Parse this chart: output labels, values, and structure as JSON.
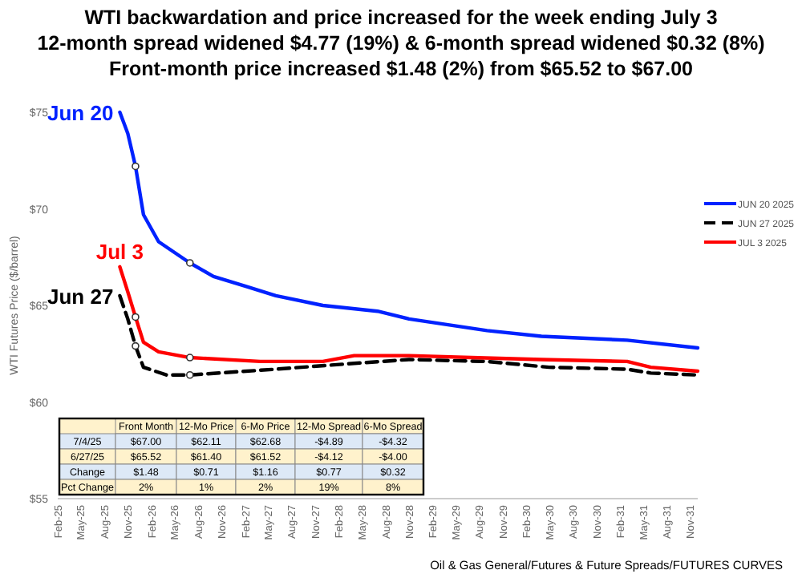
{
  "chart_data": {
    "type": "line",
    "title": "WTI backwardation and price increased for the week ending July 3",
    "subtitle": "12-month spread widened $4.77 (19%) & 6-month spread widened $0.32 (8%)\nFront-month price increased $1.48 (2%) from $65.52 to $67.00",
    "ylabel": "WTI Futures  Price ($/barrel)",
    "xlim": [
      "2025-02",
      "2031-12"
    ],
    "ylim": [
      55,
      75
    ],
    "yticks": [
      {
        "value": 55,
        "label": "$55"
      },
      {
        "value": 60,
        "label": "$60"
      },
      {
        "value": 65,
        "label": "$65"
      },
      {
        "value": 70,
        "label": "$70"
      },
      {
        "value": 75,
        "label": "$75"
      }
    ],
    "xticks": [
      {
        "value": "2025-02",
        "label": "Feb-25"
      },
      {
        "value": "2025-05",
        "label": "May-25"
      },
      {
        "value": "2025-08",
        "label": "Aug-25"
      },
      {
        "value": "2025-11",
        "label": "Nov-25"
      },
      {
        "value": "2026-02",
        "label": "Feb-26"
      },
      {
        "value": "2026-05",
        "label": "May-26"
      },
      {
        "value": "2026-08",
        "label": "Aug-26"
      },
      {
        "value": "2026-11",
        "label": "Nov-26"
      },
      {
        "value": "2027-02",
        "label": "Feb-27"
      },
      {
        "value": "2027-05",
        "label": "May-27"
      },
      {
        "value": "2027-08",
        "label": "Aug-27"
      },
      {
        "value": "2027-11",
        "label": "Nov-27"
      },
      {
        "value": "2028-02",
        "label": "Feb-28"
      },
      {
        "value": "2028-05",
        "label": "May-28"
      },
      {
        "value": "2028-08",
        "label": "Aug-28"
      },
      {
        "value": "2028-11",
        "label": "Nov-28"
      },
      {
        "value": "2029-02",
        "label": "Feb-29"
      },
      {
        "value": "2029-05",
        "label": "May-29"
      },
      {
        "value": "2029-08",
        "label": "Aug-29"
      },
      {
        "value": "2029-11",
        "label": "Nov-29"
      },
      {
        "value": "2030-02",
        "label": "Feb-30"
      },
      {
        "value": "2030-05",
        "label": "May-30"
      },
      {
        "value": "2030-08",
        "label": "Aug-30"
      },
      {
        "value": "2030-11",
        "label": "Nov-30"
      },
      {
        "value": "2031-02",
        "label": "Feb-31"
      },
      {
        "value": "2031-05",
        "label": "May-31"
      },
      {
        "value": "2031-08",
        "label": "Aug-31"
      },
      {
        "value": "2031-11",
        "label": "Nov-31"
      }
    ],
    "legend": "right",
    "series": [
      {
        "name": "JUN 20 2025",
        "color": "#0022ff",
        "line_style": "solid",
        "x": [
          "2025-10",
          "2025-11",
          "2025-12",
          "2026-01",
          "2026-03",
          "2026-07",
          "2026-10",
          "2027-02",
          "2027-06",
          "2027-12",
          "2028-07",
          "2028-11",
          "2029-09",
          "2030-04",
          "2031-03",
          "2031-12"
        ],
        "values": [
          75.0,
          73.9,
          72.2,
          69.7,
          68.3,
          67.2,
          66.5,
          66.0,
          65.5,
          65.0,
          64.7,
          64.3,
          63.7,
          63.4,
          63.2,
          62.8
        ]
      },
      {
        "name": "JUN 27 2025",
        "color": "#000000",
        "line_style": "dashed",
        "x": [
          "2025-10",
          "2025-11",
          "2025-12",
          "2026-01",
          "2026-04",
          "2026-07",
          "2027-06",
          "2028-04",
          "2028-11",
          "2029-09",
          "2030-05",
          "2031-03",
          "2031-06",
          "2031-12"
        ],
        "values": [
          65.5,
          64.3,
          62.9,
          61.8,
          61.4,
          61.4,
          61.7,
          62.0,
          62.2,
          62.1,
          61.8,
          61.7,
          61.5,
          61.4
        ]
      },
      {
        "name": "JUL 3 2025",
        "color": "#ff0000",
        "line_style": "solid",
        "x": [
          "2025-10",
          "2025-11",
          "2025-12",
          "2026-01",
          "2026-03",
          "2026-07",
          "2027-04",
          "2027-12",
          "2028-04",
          "2028-11",
          "2029-07",
          "2030-04",
          "2031-03",
          "2031-06",
          "2031-12"
        ],
        "values": [
          67.0,
          65.7,
          64.4,
          63.1,
          62.6,
          62.3,
          62.1,
          62.1,
          62.4,
          62.4,
          62.3,
          62.2,
          62.1,
          61.8,
          61.6
        ]
      },
      {
        "type": "scatter",
        "marker": "circle",
        "color": "#ffffff",
        "x": [
          "2025-12",
          "2026-07",
          "2025-12",
          "2026-07",
          "2025-12",
          "2026-07"
        ],
        "values": [
          72.2,
          67.2,
          62.9,
          61.4,
          64.4,
          62.3
        ]
      }
    ],
    "annotations": [
      "Jun 20",
      "Jun 27",
      "Jul 3",
      "Front Month",
      "12-Mo Price",
      "6-Mo Price",
      "12-Mo Spread",
      "6-Mo Spread",
      "7/4/25",
      "$67.00",
      "$62.11",
      "$62.68",
      "-$4.89",
      "-$4.32",
      "6/27/25",
      "$65.52",
      "$61.40",
      "$61.52",
      "-$4.12",
      "-$4.00",
      "Change",
      "$1.48",
      "$0.71",
      "$1.16",
      "$0.77",
      "$0.32",
      "Pct Change",
      "2%",
      "1%",
      "2%",
      "19%",
      "8%",
      "Oil & Gas General/Futures & Future Spreads/FUTURES CURVES"
    ]
  }
}
